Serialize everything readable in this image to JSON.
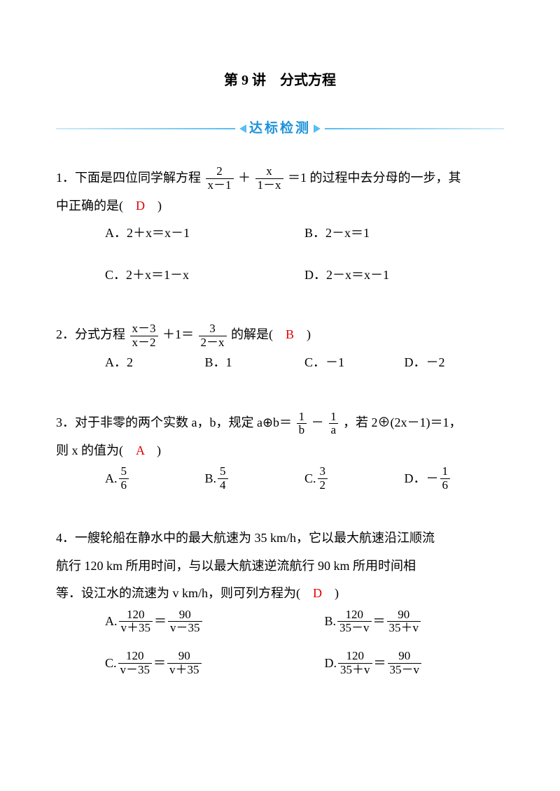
{
  "colors": {
    "text": "#000000",
    "answer": "#e30000",
    "banner_text": "#1d92da",
    "banner_accent": "#58bdf3",
    "banner_light": "#cdeaf7",
    "background": "#ffffff"
  },
  "typography": {
    "body_fontsize": 18,
    "title_fontsize": 20,
    "banner_fontsize": 19,
    "frac_fontsize": 17
  },
  "title": "第 9 讲　分式方程",
  "banner": "达标检测",
  "q1": {
    "stem_pre": "1．下面是四位同学解方程",
    "frac1": {
      "num": "2",
      "den": "x－1"
    },
    "plus": "＋",
    "frac2": {
      "num": "x",
      "den": "1－x"
    },
    "stem_post": "＝1 的过程中去分母的一步，其",
    "stem_line2_pre": "中正确的是(　",
    "answer": "D",
    "stem_line2_post": "　)",
    "optA": "A．2＋x＝x－1",
    "optB": "B．2－x＝1",
    "optC": "C．2＋x＝1－x",
    "optD": "D．2－x＝x－1"
  },
  "q2": {
    "stem_pre": "2．分式方程",
    "frac1": {
      "num": "x－3",
      "den": "x－2"
    },
    "mid1": "＋1＝",
    "frac2": {
      "num": "3",
      "den": "2－x"
    },
    "stem_post_pre": "的解是(　",
    "answer": "B",
    "stem_post_post": "　)",
    "optA": "A．2",
    "optB": "B．1",
    "optC": "C．－1",
    "optD": "D．－2"
  },
  "q3": {
    "stem_pre": "3．对于非零的两个实数 a，b，规定 a⊕b＝",
    "frac1": {
      "num": "1",
      "den": "b"
    },
    "minus": "－",
    "frac2": {
      "num": "1",
      "den": "a"
    },
    "stem_mid": "，若 2⊕(2x－1)＝1，",
    "stem_line2_pre": "则 x 的值为(　",
    "answer": "A",
    "stem_line2_post": "　)",
    "optA_label": "A.",
    "optA": {
      "num": "5",
      "den": "6"
    },
    "optB_label": "B.",
    "optB": {
      "num": "5",
      "den": "4"
    },
    "optC_label": "C.",
    "optC": {
      "num": "3",
      "den": "2"
    },
    "optD_label": "D．－",
    "optD": {
      "num": "1",
      "den": "6"
    }
  },
  "q4": {
    "line1": "4．一艘轮船在静水中的最大航速为 35 km/h，它以最大航速沿江顺流",
    "line2": "航行 120 km 所用时间，与以最大航速逆流航行 90 km 所用时间相",
    "line3_pre": "等．设江水的流速为 v km/h，则可列方程为(　",
    "answer": "D",
    "line3_post": "　)",
    "optA_label": "A.",
    "optA_l": {
      "num": "120",
      "den": "v＋35"
    },
    "optA_eq": "＝",
    "optA_r": {
      "num": "90",
      "den": "v－35"
    },
    "optB_label": "B.",
    "optB_l": {
      "num": "120",
      "den": "35－v"
    },
    "optB_eq": "＝",
    "optB_r": {
      "num": "90",
      "den": "35＋v"
    },
    "optC_label": "C.",
    "optC_l": {
      "num": "120",
      "den": "v－35"
    },
    "optC_eq": "＝",
    "optC_r": {
      "num": "90",
      "den": "v＋35"
    },
    "optD_label": "D.",
    "optD_l": {
      "num": "120",
      "den": "35＋v"
    },
    "optD_eq": "＝",
    "optD_r": {
      "num": "90",
      "den": "35－v"
    }
  }
}
